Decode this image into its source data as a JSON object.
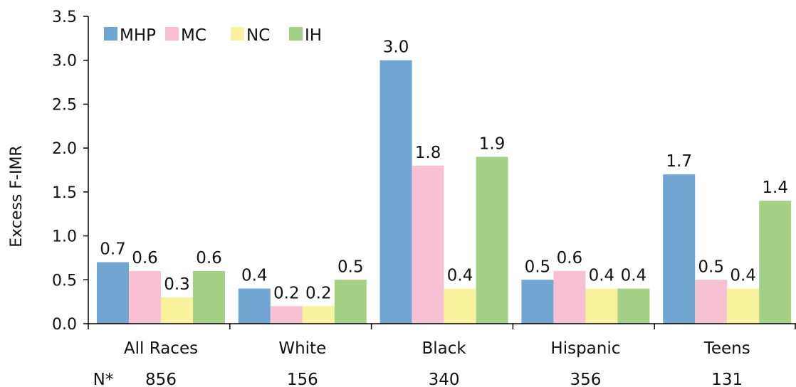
{
  "chart_data": {
    "type": "bar",
    "ylabel": "Excess F-IMR",
    "ylim": [
      0,
      3.5
    ],
    "yticks": [
      "0.0",
      "0.5",
      "1.0",
      "1.5",
      "2.0",
      "2.5",
      "3.0",
      "3.5"
    ],
    "categories": [
      "All Races",
      "White",
      "Black",
      "Hispanic",
      "Teens"
    ],
    "series": [
      {
        "name": "MHP",
        "color": "#71a5d2",
        "values": [
          0.7,
          0.4,
          3.0,
          0.5,
          1.7
        ],
        "labels": [
          "0.7",
          "0.4",
          "3.0",
          "0.5",
          "1.7"
        ]
      },
      {
        "name": "MC",
        "color": "#f8c0d3",
        "values": [
          0.6,
          0.2,
          1.8,
          0.6,
          0.5
        ],
        "labels": [
          "0.6",
          "0.2",
          "1.8",
          "0.6",
          "0.5"
        ]
      },
      {
        "name": "NC",
        "color": "#f8f29e",
        "values": [
          0.3,
          0.2,
          0.4,
          0.4,
          0.4
        ],
        "labels": [
          "0.3",
          "0.2",
          "0.4",
          "0.4",
          "0.4"
        ]
      },
      {
        "name": "IH",
        "color": "#a5d187",
        "values": [
          0.6,
          0.5,
          1.9,
          0.4,
          1.4
        ],
        "labels": [
          "0.6",
          "0.5",
          "1.9",
          "0.4",
          "1.4"
        ]
      }
    ],
    "n_row": {
      "label": "N*",
      "values": [
        "856",
        "156",
        "340",
        "356",
        "131"
      ]
    },
    "legend": "top-left",
    "grid": false
  }
}
